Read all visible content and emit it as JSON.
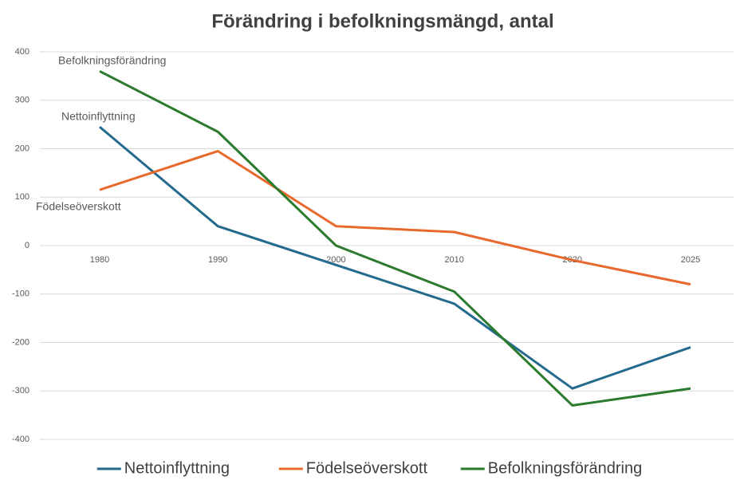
{
  "chart_data": {
    "type": "line",
    "title": "Förändring i befolkningsmängd, antal",
    "categories": [
      "1980",
      "1990",
      "2000",
      "2010",
      "2020",
      "2025"
    ],
    "series": [
      {
        "name": "Nettoinflyttning",
        "color": "#236a8c",
        "values": [
          245,
          40,
          -40,
          -120,
          -295,
          -210
        ]
      },
      {
        "name": "Födelseöverskott",
        "color": "#e8692e",
        "values": [
          115,
          195,
          40,
          28,
          -30,
          -80
        ]
      },
      {
        "name": "Befolkningsförändring",
        "color": "#2b7a2e",
        "values": [
          360,
          235,
          0,
          -95,
          -330,
          -295
        ]
      }
    ],
    "ylim": [
      -400,
      400
    ],
    "yticks": [
      -400,
      -300,
      -200,
      -100,
      0,
      100,
      200,
      300,
      400
    ],
    "grid": true,
    "legend": "bottom"
  }
}
